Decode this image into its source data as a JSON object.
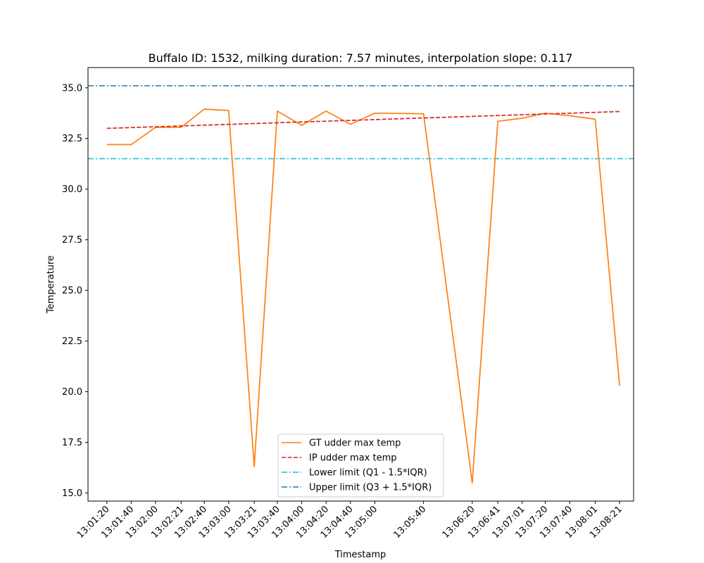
{
  "chart_data": {
    "type": "line",
    "title": "Buffalo ID: 1532, milking duration: 7.57 minutes, interpolation slope: 0.117",
    "xlabel": "Timestamp",
    "ylabel": "Temperature",
    "ylim": [
      14.6,
      36.0
    ],
    "y_ticks": [
      "15.0",
      "17.5",
      "20.0",
      "22.5",
      "25.0",
      "27.5",
      "30.0",
      "32.5",
      "35.0"
    ],
    "x_ticks": [
      {
        "label": "13:01:20",
        "t": 0
      },
      {
        "label": "13:01:40",
        "t": 20
      },
      {
        "label": "13:02:00",
        "t": 40
      },
      {
        "label": "13:02:21",
        "t": 61
      },
      {
        "label": "13:02:40",
        "t": 80
      },
      {
        "label": "13:03:00",
        "t": 100
      },
      {
        "label": "13:03:21",
        "t": 121
      },
      {
        "label": "13:03:40",
        "t": 140
      },
      {
        "label": "13:04:00",
        "t": 160
      },
      {
        "label": "13:04:20",
        "t": 180
      },
      {
        "label": "13:04:40",
        "t": 200
      },
      {
        "label": "13:05:00",
        "t": 220
      },
      {
        "label": "13:05:40",
        "t": 260
      },
      {
        "label": "13:06:20",
        "t": 300
      },
      {
        "label": "13:06:41",
        "t": 321
      },
      {
        "label": "13:07:01",
        "t": 341
      },
      {
        "label": "13:07:20",
        "t": 360
      },
      {
        "label": "13:07:40",
        "t": 380
      },
      {
        "label": "13:08:01",
        "t": 401
      },
      {
        "label": "13:08:21",
        "t": 421
      }
    ],
    "series": [
      {
        "name": "GT udder max temp",
        "color": "#ff7f0e",
        "style": "solid",
        "points": [
          [
            "13:01:20",
            32.2
          ],
          [
            "13:01:40",
            32.2
          ],
          [
            "13:02:00",
            33.05
          ],
          [
            "13:02:21",
            33.05
          ],
          [
            "13:02:40",
            33.95
          ],
          [
            "13:03:00",
            33.88
          ],
          [
            "13:03:21",
            16.3
          ],
          [
            "13:03:40",
            33.85
          ],
          [
            "13:04:00",
            33.15
          ],
          [
            "13:04:20",
            33.85
          ],
          [
            "13:04:40",
            33.2
          ],
          [
            "13:05:00",
            33.75
          ],
          [
            "13:05:40",
            33.72
          ],
          [
            "13:06:20",
            15.5
          ],
          [
            "13:06:41",
            33.35
          ],
          [
            "13:07:01",
            33.5
          ],
          [
            "13:07:20",
            33.75
          ],
          [
            "13:07:40",
            33.62
          ],
          [
            "13:08:01",
            33.45
          ],
          [
            "13:08:21",
            20.3
          ]
        ]
      },
      {
        "name": "IP udder max temp",
        "color": "#d62728",
        "style": "dashed",
        "points": [
          [
            "13:01:20",
            33.0
          ],
          [
            "13:08:21",
            33.83
          ]
        ]
      },
      {
        "name": "Lower limit (Q1 - 1.5*IQR)",
        "color": "#17becf",
        "style": "dashdot",
        "value": 31.5
      },
      {
        "name": "Upper limit (Q3 + 1.5*IQR)",
        "color": "#1f77b4",
        "style": "dashdot",
        "value": 35.1
      }
    ],
    "grid": false,
    "legend_position": "lower-center"
  }
}
